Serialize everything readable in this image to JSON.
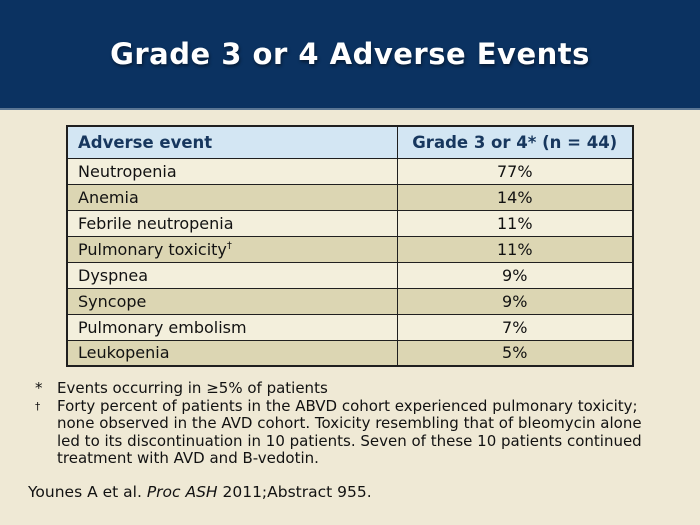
{
  "slide": {
    "title": "Grade 3 or 4 Adverse Events"
  },
  "table": {
    "headers": [
      "Adverse event",
      "Grade 3 or 4* (n = 44)"
    ],
    "rows": [
      {
        "event": "Neutropenia",
        "value": "77%"
      },
      {
        "event": "Anemia",
        "value": "14%"
      },
      {
        "event": "Febrile neutropenia",
        "value": "11%"
      },
      {
        "event": "Pulmonary toxicity",
        "sup": "†",
        "value": "11%"
      },
      {
        "event": "Dyspnea",
        "value": "9%"
      },
      {
        "event": "Syncope",
        "value": "9%"
      },
      {
        "event": "Pulmonary embolism",
        "value": "7%"
      },
      {
        "event": "Leukopenia",
        "value": "5%"
      }
    ]
  },
  "footnotes": {
    "asterisk_marker": "*",
    "asterisk_text": "Events occurring in ≥5% of patients",
    "dagger_marker": "†",
    "dagger_text": "Forty percent of patients in the ABVD cohort experienced pulmonary toxicity; none observed in the AVD cohort. Toxicity resembling that of bleomycin alone led to its discontinuation in 10 patients. Seven of these 10 patients continued treatment with AVD and B-vedotin."
  },
  "citation": {
    "prefix": "Younes A et al. ",
    "italic": "Proc ASH",
    "suffix": " 2011;Abstract 955."
  },
  "colors": {
    "header_bar": "#0b3261",
    "header_bar_edge": "#5b7694",
    "body_background": "#efe9d5",
    "table_header_background": "#d3e6f3",
    "table_header_text": "#17375e",
    "row_light": "#f3efdc",
    "row_dark": "#dcd6b3",
    "table_border": "#1f1f1f",
    "title_text": "#ffffff",
    "body_text": "#121212"
  }
}
